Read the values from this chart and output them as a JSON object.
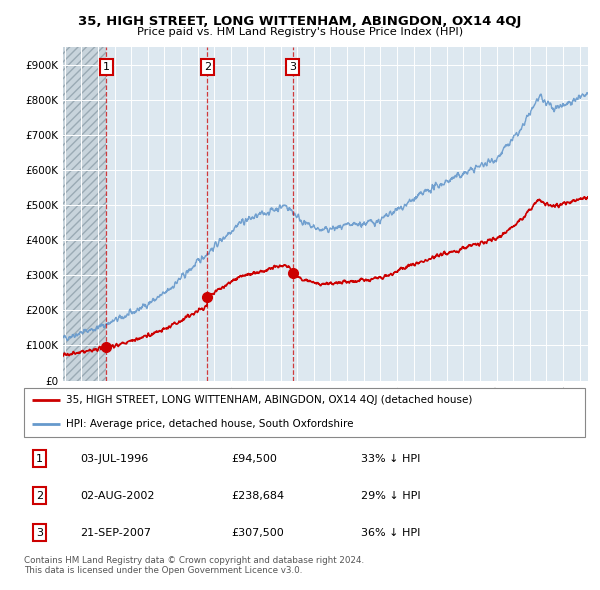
{
  "title1": "35, HIGH STREET, LONG WITTENHAM, ABINGDON, OX14 4QJ",
  "title2": "Price paid vs. HM Land Registry's House Price Index (HPI)",
  "red_label": "35, HIGH STREET, LONG WITTENHAM, ABINGDON, OX14 4QJ (detached house)",
  "blue_label": "HPI: Average price, detached house, South Oxfordshire",
  "transactions": [
    {
      "num": 1,
      "date_float": 1996.503,
      "price": 94500
    },
    {
      "num": 2,
      "date_float": 2002.583,
      "price": 238684
    },
    {
      "num": 3,
      "date_float": 2007.719,
      "price": 307500
    }
  ],
  "table_rows": [
    {
      "num": 1,
      "date_str": "03-JUL-1996",
      "price_str": "£94,500",
      "pct_str": "33% ↓ HPI"
    },
    {
      "num": 2,
      "date_str": "02-AUG-2002",
      "price_str": "£238,684",
      "pct_str": "29% ↓ HPI"
    },
    {
      "num": 3,
      "date_str": "21-SEP-2007",
      "price_str": "£307,500",
      "pct_str": "36% ↓ HPI"
    }
  ],
  "footer": "Contains HM Land Registry data © Crown copyright and database right 2024.\nThis data is licensed under the Open Government Licence v3.0.",
  "red_color": "#cc0000",
  "blue_color": "#6699cc",
  "bg_color": "#dde8f0",
  "hatch_color": "#b0b8c0",
  "grid_color": "#ffffff",
  "ylim": [
    0,
    950000
  ],
  "yticks": [
    0,
    100000,
    200000,
    300000,
    400000,
    500000,
    600000,
    700000,
    800000,
    900000
  ],
  "ytick_labels": [
    "£0",
    "£100K",
    "£200K",
    "£300K",
    "£400K",
    "£500K",
    "£600K",
    "£700K",
    "£800K",
    "£900K"
  ],
  "xlim_start": 1993.9,
  "xlim_end": 2025.5,
  "hatch_end": 1996.503
}
